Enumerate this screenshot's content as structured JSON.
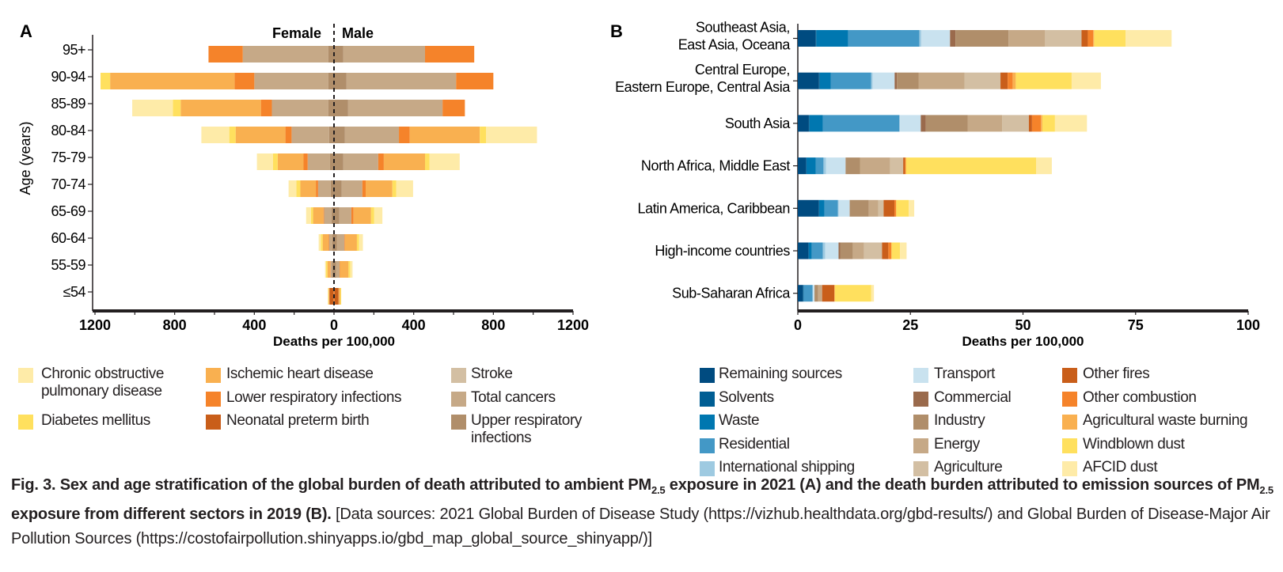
{
  "chart_data": [
    {
      "panel": "A",
      "type": "bar",
      "orientation": "horizontal-diverging-stacked",
      "xlabel": "Deaths per 100,000",
      "ylabel": "Age (years)",
      "xlim": [
        -1200,
        1200
      ],
      "xticks": [
        1200,
        800,
        400,
        0,
        400,
        800,
        1200
      ],
      "side_labels": {
        "left": "Female",
        "right": "Male"
      },
      "categories": [
        "95+",
        "90-94",
        "85-89",
        "80-84",
        "75-79",
        "70-74",
        "65-69",
        "60-64",
        "55-59",
        "≤54"
      ],
      "series": [
        {
          "name": "Upper respiratory infections",
          "color": "#b08e6a"
        },
        {
          "name": "Total cancers",
          "color": "#c6a987"
        },
        {
          "name": "Stroke",
          "color": "#d3bfa3"
        },
        {
          "name": "Lower respiratory infections",
          "color": "#f5832a"
        },
        {
          "name": "Neonatal preterm birth",
          "color": "#c95e1a"
        },
        {
          "name": "Ischemic heart disease",
          "color": "#f9b050"
        },
        {
          "name": "Diabetes mellitus",
          "color": "#ffe05e"
        },
        {
          "name": "Chronic obstructive pulmonary disease",
          "color": "#feeba8"
        }
      ],
      "female": [
        [
          28,
          430,
          0,
          172,
          0,
          0,
          0,
          0
        ],
        [
          28,
          372,
          0,
          99,
          0,
          625,
          48,
          0
        ],
        [
          28,
          284,
          0,
          55,
          0,
          403,
          39,
          204
        ],
        [
          25,
          188,
          0,
          31,
          0,
          250,
          32,
          140
        ],
        [
          20,
          112,
          0,
          21,
          0,
          130,
          24,
          80
        ],
        [
          17,
          63,
          0,
          11,
          0,
          78,
          20,
          39
        ],
        [
          13,
          37,
          0,
          3,
          0,
          52,
          11,
          24
        ],
        [
          8,
          17,
          0,
          3,
          0,
          29,
          9,
          11
        ],
        [
          8,
          9,
          0,
          2,
          0,
          14,
          8,
          4
        ],
        [
          0,
          0,
          0,
          3,
          20,
          4,
          3,
          0
        ]
      ],
      "male": [
        [
          47,
          410,
          0,
          247,
          0,
          0,
          0,
          0
        ],
        [
          63,
          550,
          0,
          187,
          0,
          0,
          0,
          0
        ],
        [
          71,
          474,
          0,
          112,
          0,
          0,
          0,
          0
        ],
        [
          55,
          271,
          0,
          54,
          0,
          352,
          32,
          255
        ],
        [
          47,
          175,
          0,
          28,
          0,
          207,
          23,
          151
        ],
        [
          39,
          103,
          0,
          17,
          0,
          134,
          19,
          85
        ],
        [
          27,
          60,
          0,
          11,
          0,
          88,
          16,
          41
        ],
        [
          14,
          38,
          0,
          3,
          0,
          60,
          11,
          19
        ],
        [
          11,
          17,
          0,
          2,
          0,
          43,
          9,
          11
        ],
        [
          0,
          0,
          0,
          3,
          20,
          8,
          5,
          0
        ]
      ],
      "legend": [
        {
          "label": "Chronic obstructive pulmonary disease",
          "lines": [
            "Chronic obstructive",
            "pulmonary disease"
          ],
          "color": "#feeba8"
        },
        {
          "label": "Diabetes mellitus",
          "lines": [
            "Diabetes mellitus"
          ],
          "color": "#ffe05e"
        },
        {
          "label": "Ischemic heart disease",
          "lines": [
            "Ischemic heart disease"
          ],
          "color": "#f9b050"
        },
        {
          "label": "Lower respiratory infections",
          "lines": [
            "Lower respiratory infections"
          ],
          "color": "#f5832a"
        },
        {
          "label": "Neonatal preterm birth",
          "lines": [
            "Neonatal preterm birth"
          ],
          "color": "#c95e1a"
        },
        {
          "label": "Stroke",
          "lines": [
            "Stroke"
          ],
          "color": "#d3bfa3"
        },
        {
          "label": "Total cancers",
          "lines": [
            "Total cancers"
          ],
          "color": "#c6a987"
        },
        {
          "label": "Upper respiratory infections",
          "lines": [
            "Upper respiratory",
            "infections"
          ],
          "color": "#b08e6a"
        }
      ]
    },
    {
      "panel": "B",
      "type": "bar",
      "orientation": "horizontal-stacked",
      "xlabel": "Deaths per 100,000",
      "xlim": [
        0,
        100
      ],
      "xticks": [
        0,
        25,
        50,
        75,
        100
      ],
      "categories": [
        {
          "label": "Southeast Asia, East Asia, Oceana",
          "lines": [
            "Southeast Asia,",
            "East Asia, Oceana"
          ]
        },
        {
          "label": "Central Europe, Eastern Europe, Central Asia",
          "lines": [
            "Central Europe,",
            "Eastern Europe, Central Asia"
          ]
        },
        {
          "label": "South Asia",
          "lines": [
            "South Asia"
          ]
        },
        {
          "label": "North Africa, Middle East",
          "lines": [
            "North Africa, Middle East"
          ]
        },
        {
          "label": "Latin America, Caribbean",
          "lines": [
            "Latin America, Caribbean"
          ]
        },
        {
          "label": "High-income countries",
          "lines": [
            "High-income countries"
          ]
        },
        {
          "label": "Sub-Saharan Africa",
          "lines": [
            "Sub-Saharan Africa"
          ]
        }
      ],
      "series": [
        {
          "name": "Remaining sources",
          "color": "#004b80"
        },
        {
          "name": "Solvents",
          "color": "#005e94"
        },
        {
          "name": "Waste",
          "color": "#0077b0"
        },
        {
          "name": "Residential",
          "color": "#4398c6"
        },
        {
          "name": "International shipping",
          "color": "#9ecae1"
        },
        {
          "name": "Transport",
          "color": "#c9e2ef"
        },
        {
          "name": "Commercial",
          "color": "#9a6a4c"
        },
        {
          "name": "Industry",
          "color": "#b08e6a"
        },
        {
          "name": "Energy",
          "color": "#c6a987"
        },
        {
          "name": "Agriculture",
          "color": "#d3bfa3"
        },
        {
          "name": "Other fires",
          "color": "#c95e1a"
        },
        {
          "name": "Other combustion",
          "color": "#f5832a"
        },
        {
          "name": "Agricultural waste burning",
          "color": "#f9b050"
        },
        {
          "name": "Windblown dust",
          "color": "#ffe05e"
        },
        {
          "name": "AFCID dust",
          "color": "#feeba8"
        }
      ],
      "values": [
        [
          4.0,
          0.1,
          7.1,
          15.8,
          0.4,
          6.4,
          1.2,
          11.8,
          8.1,
          8.1,
          1.4,
          1.2,
          0.2,
          7.0,
          10.2
        ],
        [
          4.7,
          0.15,
          2.45,
          9.0,
          0.3,
          4.9,
          0.5,
          4.8,
          10.2,
          8.0,
          1.6,
          1.1,
          0.7,
          12.4,
          6.5
        ],
        [
          2.45,
          0.15,
          2.95,
          17.0,
          0.15,
          4.6,
          1.1,
          9.3,
          7.7,
          5.9,
          0.7,
          2.0,
          0.3,
          2.8,
          7.1
        ],
        [
          1.9,
          0,
          2.05,
          1.75,
          0.55,
          4.35,
          0.05,
          3.15,
          6.7,
          2.9,
          0.4,
          0.2,
          0,
          28.9,
          3.5
        ],
        [
          4.7,
          0,
          1.2,
          3.0,
          0.15,
          2.45,
          0.05,
          4.2,
          2.1,
          1.2,
          2.4,
          0.4,
          0,
          2.8,
          1.2
        ],
        [
          2.4,
          0,
          0.7,
          2.45,
          0.55,
          2.95,
          0.35,
          2.8,
          2.5,
          4.0,
          1.4,
          0.7,
          0,
          1.9,
          1.45
        ],
        [
          1.1,
          0.2,
          0,
          2.0,
          0,
          0.4,
          0,
          0.8,
          0.9,
          0,
          2.7,
          0.1,
          0,
          8.1,
          0.6
        ]
      ]
    }
  ],
  "panel_labels": {
    "a": "A",
    "b": "B"
  },
  "caption": {
    "bold_1": "Fig. 3. Sex and age stratification of the global burden of death attributed to ambient PM",
    "sub": "2.5",
    "bold_2": " exposure in 2021 (A) and the death burden attributed to emission sources of PM",
    "bold_3": " exposure from different sectors in 2019 (B).",
    "normal": " [Data sources: 2021 Global Burden of Disease Study (https://vizhub.healthdata.org/gbd-results/) and Global Burden of Disease-Major Air Pollution Sources (https://costofairpollution.shinyapps.io/gbd_map_global_source_shinyapp/)]"
  }
}
